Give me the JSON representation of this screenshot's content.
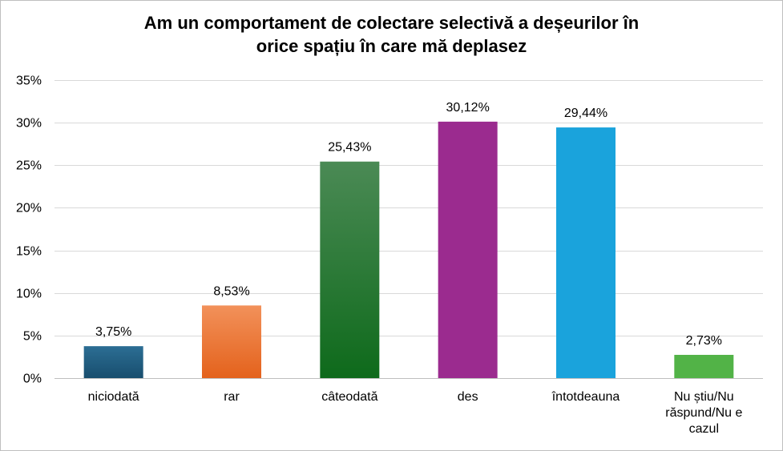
{
  "chart_data": {
    "type": "bar",
    "title_lines": [
      "Am un comportament de colectare selectivă a deșeurilor în",
      "orice spațiu în care mă deplasez"
    ],
    "xlabel": "",
    "ylabel": "",
    "categories": [
      [
        "niciodată"
      ],
      [
        "rar"
      ],
      [
        "câteodată"
      ],
      [
        "des"
      ],
      [
        "întotdeauna"
      ],
      [
        "Nu știu/Nu",
        "răspund/Nu e",
        "cazul"
      ]
    ],
    "values": [
      3.75,
      8.53,
      25.43,
      30.12,
      29.44,
      2.73
    ],
    "data_labels": [
      "3,75%",
      "8,53%",
      "25,43%",
      "30,12%",
      "29,44%",
      "2,73%"
    ],
    "ylim": [
      0,
      35
    ],
    "yticks": [
      0,
      5,
      10,
      15,
      20,
      25,
      30,
      35
    ],
    "ytick_labels": [
      "0%",
      "5%",
      "10%",
      "15%",
      "20%",
      "25%",
      "30%",
      "35%"
    ],
    "grid": true,
    "legend": "none",
    "bar_colors": [
      [
        "#2c6e94",
        "#184e6e"
      ],
      [
        "#f2915a",
        "#e4621c"
      ],
      [
        "#4b8a55",
        "#0e6a1b"
      ],
      [
        "#9b2b8f",
        "#9b2b8f"
      ],
      [
        "#1aa3dc",
        "#1aa3dc"
      ],
      [
        "#52b347",
        "#52b347"
      ]
    ],
    "grid_color": "#d9d9d9"
  }
}
